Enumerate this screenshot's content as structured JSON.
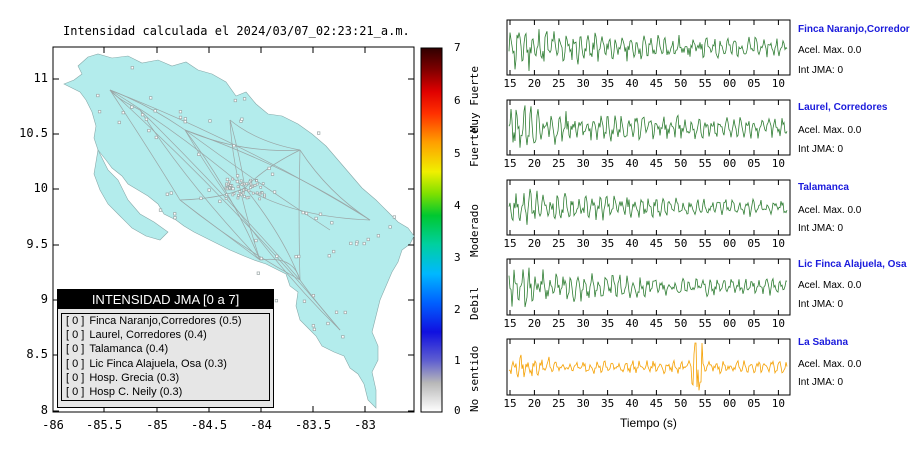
{
  "map": {
    "title": "Intensidad calculada el 2024/03/07_02:23:21_a.m.",
    "lat_ticks": [
      "11",
      "10.5",
      "10",
      "9.5",
      "9",
      "8.5",
      "8"
    ],
    "lon_ticks": [
      "-86",
      "-85.5",
      "-85",
      "-84.5",
      "-84",
      "-83.5",
      "-83"
    ],
    "land_color": "#b3ecec",
    "legend": {
      "title": "INTENSIDAD JMA [0 a 7]",
      "items": [
        {
          "level": "[ 0 ]",
          "station": "Finca Naranjo,Corredores (0.5)"
        },
        {
          "level": "[ 0 ]",
          "station": "Laurel, Corredores (0.4)"
        },
        {
          "level": "[ 0 ]",
          "station": "Talamanca (0.4)"
        },
        {
          "level": "[ 0 ]",
          "station": "Lic Finca Alajuela, Osa (0.3)"
        },
        {
          "level": "[ 0 ]",
          "station": "Hosp. Grecia (0.3)"
        },
        {
          "level": "[ 0 ]",
          "station": "Hosp C. Neily (0.3)"
        }
      ]
    }
  },
  "colorbar": {
    "ticks": [
      "7",
      "6",
      "5",
      "4",
      "3",
      "2",
      "1",
      "0"
    ],
    "labels": [
      "Muy Fuerte",
      "Fuerte",
      "Moderado",
      "Debil",
      "No sentido"
    ]
  },
  "waveforms": {
    "x_ticks": [
      "15",
      "20",
      "25",
      "30",
      "35",
      "40",
      "45",
      "50",
      "55",
      "00",
      "05",
      "10"
    ],
    "x_title": "Tiempo (s)",
    "stations": [
      {
        "name": "Finca Naranjo,Corredores",
        "acel": "Acel. Max. 0.0",
        "int": "Int JMA: 0",
        "color": "#2e7d32"
      },
      {
        "name": "Laurel, Corredores",
        "acel": "Acel. Max. 0.0",
        "int": "Int JMA: 0",
        "color": "#2e7d32"
      },
      {
        "name": "Talamanca",
        "acel": "Acel. Max. 0.0",
        "int": "Int JMA: 0",
        "color": "#2e7d32"
      },
      {
        "name": "Lic Finca Alajuela, Osa",
        "acel": "Acel. Max. 0.0",
        "int": "Int JMA: 0",
        "color": "#2e7d32"
      },
      {
        "name": "La Sabana",
        "acel": "Acel. Max. 0.0",
        "int": "Int JMA: 0",
        "color": "#f5a000"
      }
    ]
  }
}
